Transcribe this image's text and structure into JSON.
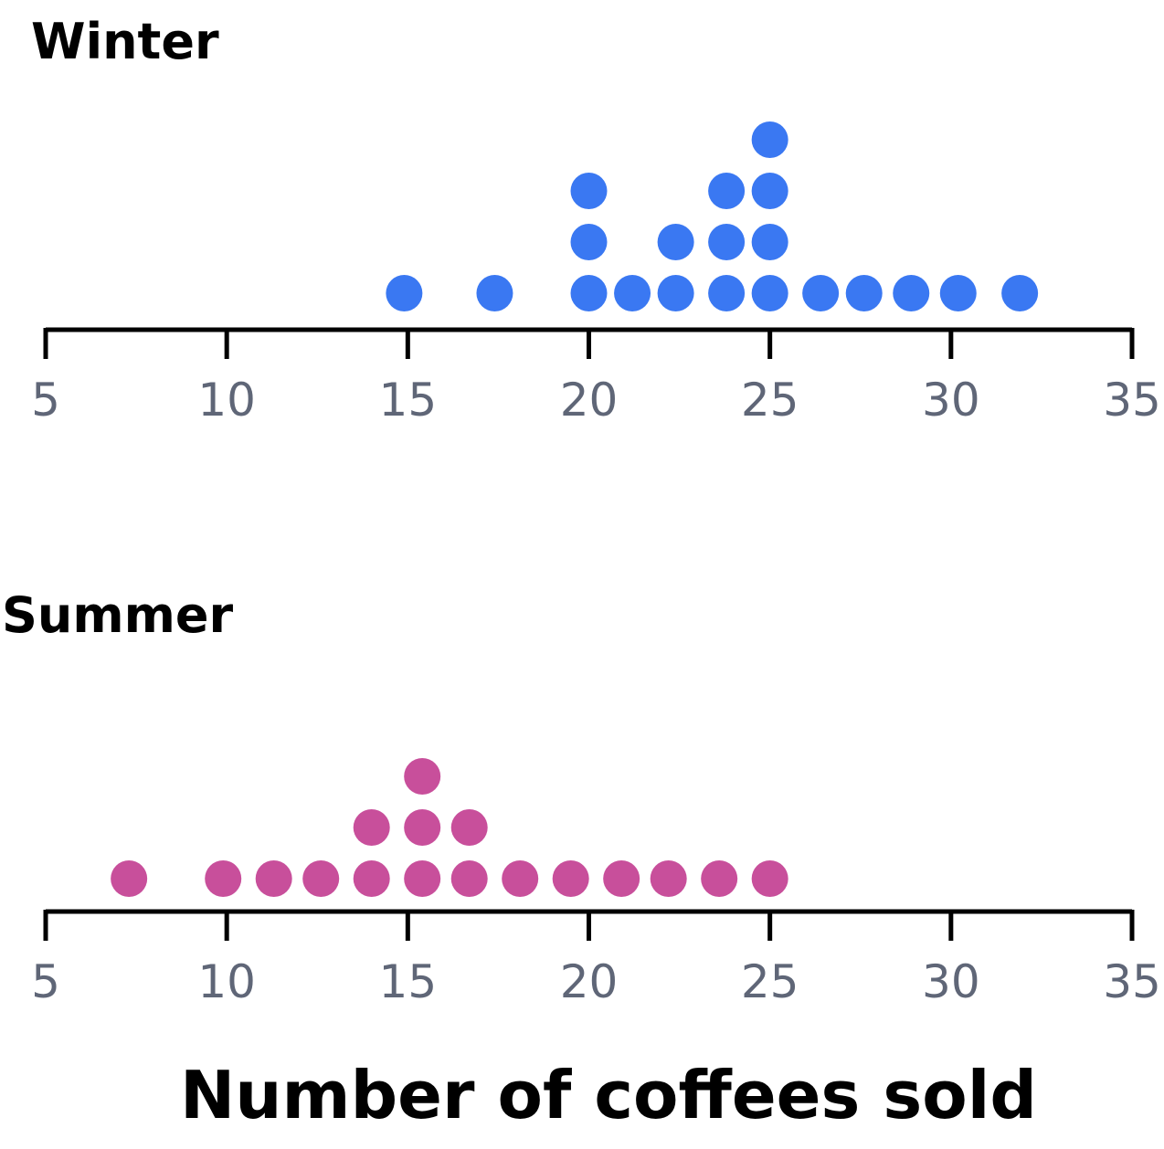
{
  "chart_data": {
    "type": "dot_plot",
    "xlabel": "Number of coffees sold",
    "xlim": [
      5,
      35
    ],
    "xticks": [
      5,
      10,
      15,
      20,
      25,
      30,
      35
    ],
    "panels": [
      {
        "title": "Winter",
        "color": "#3a78f2",
        "points": [
          {
            "x": 14.9,
            "count": 1
          },
          {
            "x": 17.4,
            "count": 1
          },
          {
            "x": 20.0,
            "count": 3
          },
          {
            "x": 21.2,
            "count": 1
          },
          {
            "x": 22.4,
            "count": 2
          },
          {
            "x": 23.8,
            "count": 3
          },
          {
            "x": 25.0,
            "count": 4
          },
          {
            "x": 26.4,
            "count": 1
          },
          {
            "x": 27.6,
            "count": 1
          },
          {
            "x": 28.9,
            "count": 1
          },
          {
            "x": 30.2,
            "count": 1
          },
          {
            "x": 31.9,
            "count": 1
          }
        ]
      },
      {
        "title": "Summer",
        "color": "#c84f9b",
        "points": [
          {
            "x": 7.3,
            "count": 1
          },
          {
            "x": 9.9,
            "count": 1
          },
          {
            "x": 11.3,
            "count": 1
          },
          {
            "x": 12.6,
            "count": 1
          },
          {
            "x": 14.0,
            "count": 2
          },
          {
            "x": 15.4,
            "count": 3
          },
          {
            "x": 16.7,
            "count": 2
          },
          {
            "x": 18.1,
            "count": 1
          },
          {
            "x": 19.5,
            "count": 1
          },
          {
            "x": 20.9,
            "count": 1
          },
          {
            "x": 22.2,
            "count": 1
          },
          {
            "x": 23.6,
            "count": 1
          },
          {
            "x": 25.0,
            "count": 1
          }
        ]
      }
    ]
  }
}
